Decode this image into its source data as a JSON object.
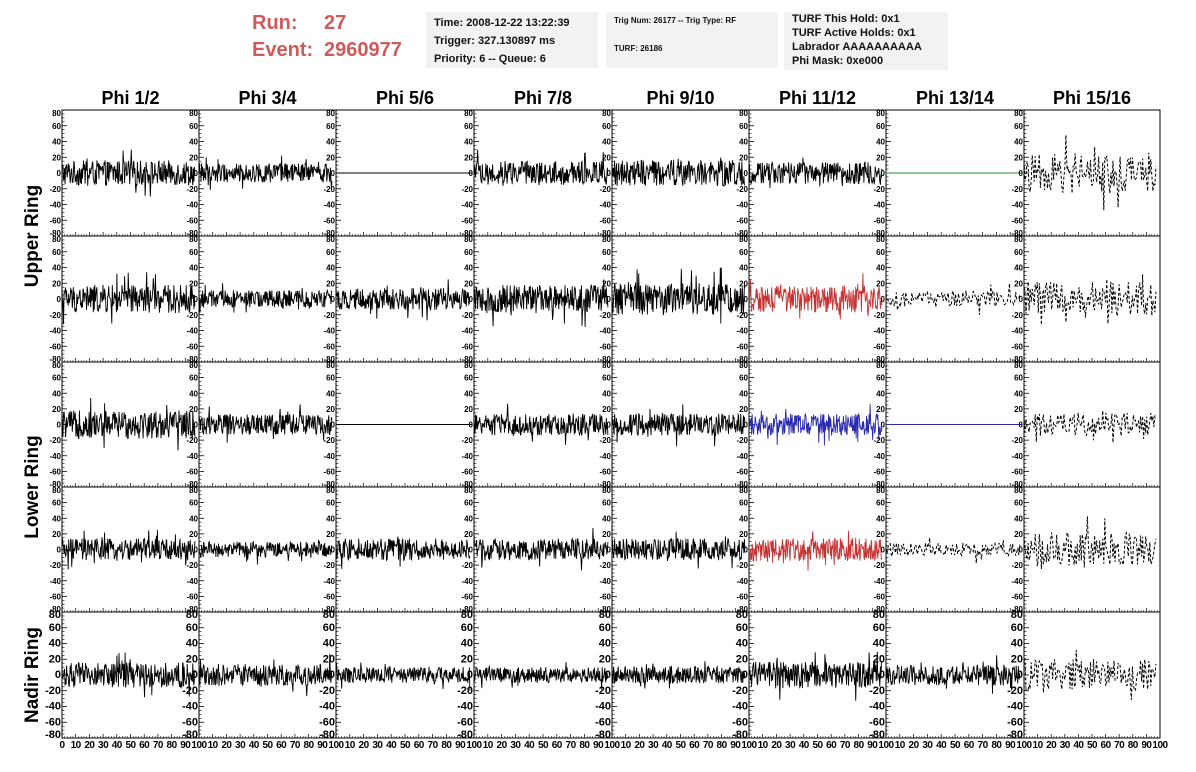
{
  "header": {
    "run_label": "Run:",
    "run_value": "27",
    "event_label": "Event:",
    "event_value": "2960977",
    "time": "Time: 2008-12-22 13:22:39",
    "trigger": "Trigger: 327.130897 ms",
    "priority": "Priority: 6 -- Queue: 6",
    "trig_num": "Trig Num: 26177 -- Trig Type: RF",
    "turf": "TURF: 26186",
    "turf_this_hold": "TURF This Hold: 0x1",
    "turf_active_holds": "TURF Active Holds: 0x1",
    "labrador": "Labrador AAAAAAAAAA",
    "phi_mask": "Phi Mask: 0xe000",
    "accent_color": "#d05a5a"
  },
  "chart_data": {
    "type": "line",
    "columns": [
      "Phi 1/2",
      "Phi 3/4",
      "Phi 5/6",
      "Phi 7/8",
      "Phi 9/10",
      "Phi 11/12",
      "Phi 13/14",
      "Phi 15/16"
    ],
    "ring_labels": [
      "Upper Ring",
      "Lower Ring",
      "Nadir Ring"
    ],
    "rows_per_ring": [
      2,
      2,
      1
    ],
    "xlim": [
      0,
      100
    ],
    "ylim": [
      -80,
      80
    ],
    "x_ticks": [
      0,
      10,
      20,
      30,
      40,
      50,
      60,
      70,
      80,
      90,
      100
    ],
    "y_ticks": [
      -80,
      -60,
      -40,
      -20,
      0,
      20,
      40,
      60,
      80
    ],
    "y_tick_labels_upper_lower": [
      "-80",
      "-60",
      "-40",
      "-20",
      "0",
      "20",
      "40",
      "60",
      "80"
    ],
    "y_tick_labels_nadir": [
      "-80",
      "-60",
      "-40",
      "-20",
      "0",
      "20",
      "40",
      "60",
      "80"
    ],
    "x_tick_labels": [
      "0",
      "10",
      "20",
      "30",
      "40",
      "50",
      "60",
      "70",
      "80",
      "90",
      "100"
    ],
    "colors": {
      "normal": "#000000",
      "triggered": "#c83232",
      "blue": "#2a2ab0",
      "green": "#2a8a2a"
    },
    "panels": [
      [
        {
          "style": "solid",
          "color": "normal",
          "amp": 16
        },
        {
          "style": "solid",
          "color": "normal",
          "amp": 12
        },
        {
          "style": "flat",
          "color": "normal",
          "amp": 0
        },
        {
          "style": "solid",
          "color": "normal",
          "amp": 15
        },
        {
          "style": "solid",
          "color": "normal",
          "amp": 17
        },
        {
          "style": "solid",
          "color": "normal",
          "amp": 14
        },
        {
          "style": "flat",
          "color": "green",
          "amp": 0
        },
        {
          "style": "dashed",
          "color": "normal",
          "amp": 26
        }
      ],
      [
        {
          "style": "solid",
          "color": "normal",
          "amp": 18
        },
        {
          "style": "solid",
          "color": "normal",
          "amp": 11
        },
        {
          "style": "solid",
          "color": "normal",
          "amp": 14
        },
        {
          "style": "solid",
          "color": "normal",
          "amp": 18
        },
        {
          "style": "solid",
          "color": "normal",
          "amp": 20
        },
        {
          "style": "solid",
          "color": "triggered",
          "amp": 17
        },
        {
          "style": "dashed",
          "color": "normal",
          "amp": 10
        },
        {
          "style": "dashed",
          "color": "normal",
          "amp": 22
        }
      ],
      [
        {
          "style": "solid",
          "color": "normal",
          "amp": 18
        },
        {
          "style": "solid",
          "color": "normal",
          "amp": 13
        },
        {
          "style": "flat",
          "color": "normal",
          "amp": 0
        },
        {
          "style": "solid",
          "color": "normal",
          "amp": 14
        },
        {
          "style": "solid",
          "color": "normal",
          "amp": 14
        },
        {
          "style": "solid",
          "color": "blue",
          "amp": 14
        },
        {
          "style": "flat",
          "color": "blue",
          "amp": 0
        },
        {
          "style": "dashed",
          "color": "normal",
          "amp": 15
        }
      ],
      [
        {
          "style": "solid",
          "color": "normal",
          "amp": 14
        },
        {
          "style": "solid",
          "color": "normal",
          "amp": 10
        },
        {
          "style": "solid",
          "color": "normal",
          "amp": 14
        },
        {
          "style": "solid",
          "color": "normal",
          "amp": 14
        },
        {
          "style": "solid",
          "color": "normal",
          "amp": 14
        },
        {
          "style": "solid",
          "color": "triggered",
          "amp": 15
        },
        {
          "style": "dashed",
          "color": "normal",
          "amp": 9
        },
        {
          "style": "dashed",
          "color": "normal",
          "amp": 22
        }
      ],
      [
        {
          "style": "solid",
          "color": "normal",
          "amp": 16
        },
        {
          "style": "solid",
          "color": "normal",
          "amp": 14
        },
        {
          "style": "solid",
          "color": "normal",
          "amp": 10
        },
        {
          "style": "solid",
          "color": "normal",
          "amp": 10
        },
        {
          "style": "solid",
          "color": "normal",
          "amp": 11
        },
        {
          "style": "solid",
          "color": "normal",
          "amp": 17
        },
        {
          "style": "solid",
          "color": "normal",
          "amp": 13
        },
        {
          "style": "dashed",
          "color": "normal",
          "amp": 20
        }
      ]
    ]
  }
}
